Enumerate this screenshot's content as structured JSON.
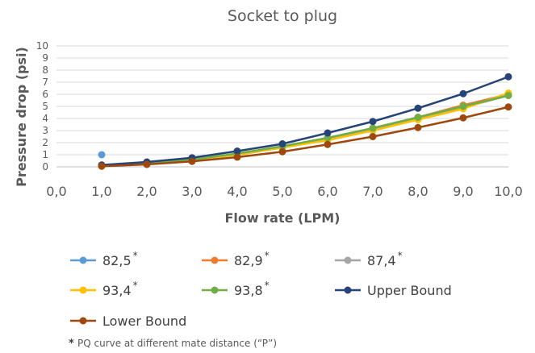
{
  "chart_data": {
    "type": "line",
    "title": "Socket to plug",
    "xlabel": "Flow rate (LPM)",
    "ylabel": "Pressure drop (psi)",
    "xlim": [
      0,
      10
    ],
    "ylim": [
      0,
      10
    ],
    "x_ticks": [
      "0,0",
      "1,0",
      "2,0",
      "3,0",
      "4,0",
      "5,0",
      "6,0",
      "7,0",
      "8,0",
      "9,0",
      "10,0"
    ],
    "y_ticks": [
      "0",
      "1",
      "2",
      "3",
      "4",
      "5",
      "6",
      "7",
      "8",
      "9",
      "10"
    ],
    "grid": "horizontal",
    "legend_placement": "bottom",
    "x": [
      1,
      2,
      3,
      4,
      5,
      6,
      7,
      8,
      9,
      10
    ],
    "series": [
      {
        "name": "82,5",
        "star": "*",
        "color": "#5b9bd5",
        "values": [
          1.0,
          null,
          null,
          null,
          null,
          null,
          null,
          null,
          null,
          null
        ]
      },
      {
        "name": "82,9",
        "star": "*",
        "color": "#ed7d31",
        "values": [
          0.1,
          0.3,
          0.6,
          1.0,
          1.6,
          2.3,
          3.2,
          4.1,
          5.1,
          6.0
        ]
      },
      {
        "name": "87,4",
        "star": "*",
        "color": "#a5a5a5",
        "values": [
          0.1,
          0.3,
          0.6,
          1.0,
          1.6,
          2.3,
          3.1,
          4.0,
          4.9,
          5.9
        ]
      },
      {
        "name": "93,4",
        "star": "*",
        "color": "#ffc000",
        "values": [
          0.1,
          0.3,
          0.6,
          1.0,
          1.6,
          2.2,
          3.0,
          3.9,
          4.8,
          6.1
        ]
      },
      {
        "name": "93,8",
        "star": "*",
        "color": "#70ad47",
        "values": [
          0.1,
          0.3,
          0.6,
          1.1,
          1.7,
          2.4,
          3.2,
          4.1,
          5.0,
          5.9
        ]
      },
      {
        "name": "Upper Bound",
        "star": "",
        "color": "#264478",
        "values": [
          0.15,
          0.4,
          0.75,
          1.3,
          1.9,
          2.8,
          3.75,
          4.85,
          6.05,
          7.45
        ]
      },
      {
        "name": "Lower Bound",
        "star": "",
        "color": "#9e480e",
        "values": [
          0.05,
          0.2,
          0.45,
          0.8,
          1.25,
          1.85,
          2.5,
          3.25,
          4.05,
          4.95
        ]
      }
    ],
    "footnote_star": "*",
    "footnote": "PQ curve at different mate distance (“P”)"
  }
}
